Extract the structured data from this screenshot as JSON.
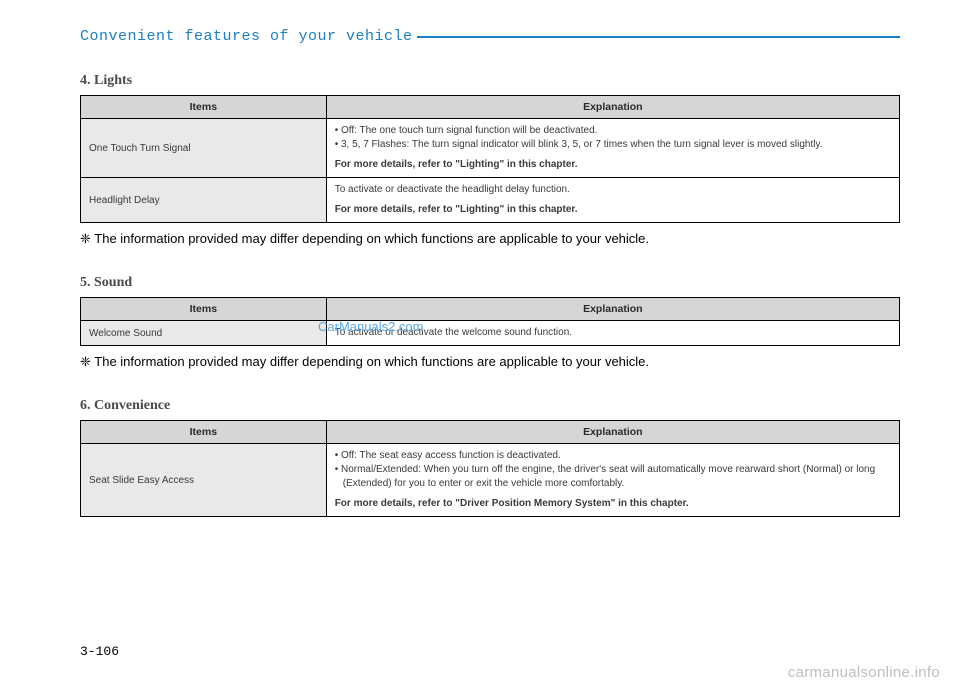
{
  "header": {
    "title": "Convenient features of your vehicle"
  },
  "watermarks": {
    "cm2": "CarManuals2.com",
    "footer": "carmanualsonline.info"
  },
  "page_number": "3-106",
  "sections": {
    "lights": {
      "title": "4. Lights",
      "columns": {
        "items": "Items",
        "explanation": "Explanation"
      },
      "rows": [
        {
          "item": "One Touch Turn Signal",
          "bullets": [
            "• Off: The one touch turn signal function will be deactivated.",
            "• 3, 5, 7 Flashes: The turn signal indicator will blink 3, 5, or 7 times when the turn signal lever is moved slightly."
          ],
          "details": "For more details, refer to \"Lighting\" in this chapter."
        },
        {
          "item": "Headlight Delay",
          "text": "To activate or deactivate the headlight delay function.",
          "details": "For more details, refer to \"Lighting\" in this chapter."
        }
      ],
      "footnote": "❈ The information provided may differ depending on which functions are applicable to your vehicle."
    },
    "sound": {
      "title": "5. Sound",
      "columns": {
        "items": "Items",
        "explanation": "Explanation"
      },
      "rows": [
        {
          "item": "Welcome Sound",
          "text": "To activate or deactivate the welcome sound function."
        }
      ],
      "footnote": "❈ The information provided may differ depending on which functions are applicable to your vehicle."
    },
    "convenience": {
      "title": "6. Convenience",
      "columns": {
        "items": "Items",
        "explanation": "Explanation"
      },
      "rows": [
        {
          "item": "Seat Slide Easy Access",
          "bullets": [
            "• Off: The seat easy access function is deactivated.",
            "• Normal/Extended: When you turn off the engine, the driver's seat will automatically move rearward short (Normal) or long (Extended) for you to enter or exit the vehicle more comfortably."
          ],
          "details": "For more details, refer to \"Driver Position Memory System\" in this chapter."
        }
      ]
    }
  }
}
